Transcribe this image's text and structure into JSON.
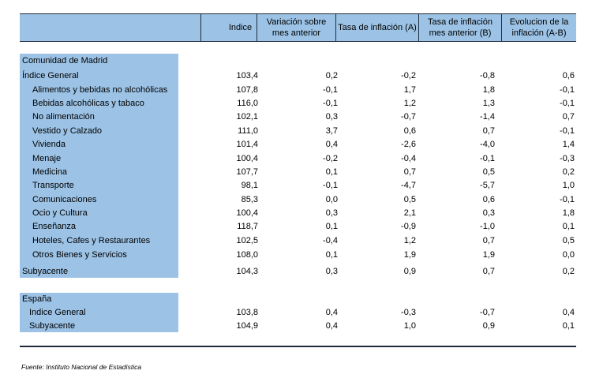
{
  "header": {
    "col0": "",
    "col1": "Indice",
    "col2": "Variación sobre mes anterior",
    "col3": "Tasa de inflación (A)",
    "col4": "Tasa de inflación mes anterior (B)",
    "col5": "Evolucion de la inflación (A-B)"
  },
  "madrid": {
    "title": "Comunidad de Madrid",
    "rows": [
      {
        "label": "Índice General",
        "v": [
          "103,4",
          "0,2",
          "-0,2",
          "-0,8",
          "0,6"
        ]
      },
      {
        "label": "Alimentos y bebidas no alcohólicas",
        "v": [
          "107,8",
          "-0,1",
          "1,7",
          "1,8",
          "-0,1"
        ]
      },
      {
        "label": "Bebidas alcohólicas y tabaco",
        "v": [
          "116,0",
          "-0,1",
          "1,2",
          "1,3",
          "-0,1"
        ]
      },
      {
        "label": "No alimentación",
        "v": [
          "102,1",
          "0,3",
          "-0,7",
          "-1,4",
          "0,7"
        ]
      },
      {
        "label": "Vestido y Calzado",
        "v": [
          "111,0",
          "3,7",
          "0,6",
          "0,7",
          "-0,1"
        ]
      },
      {
        "label": "Vivienda",
        "v": [
          "101,4",
          "0,4",
          "-2,6",
          "-4,0",
          "1,4"
        ]
      },
      {
        "label": "Menaje",
        "v": [
          "100,4",
          "-0,2",
          "-0,4",
          "-0,1",
          "-0,3"
        ]
      },
      {
        "label": "Medicina",
        "v": [
          "107,7",
          "0,1",
          "0,7",
          "0,5",
          "0,2"
        ]
      },
      {
        "label": "Transporte",
        "v": [
          "98,1",
          "-0,1",
          "-4,7",
          "-5,7",
          "1,0"
        ]
      },
      {
        "label": "Comunicaciones",
        "v": [
          "85,3",
          "0,0",
          "0,5",
          "0,6",
          "-0,1"
        ]
      },
      {
        "label": "Ocio y Cultura",
        "v": [
          "100,4",
          "0,3",
          "2,1",
          "0,3",
          "1,8"
        ]
      },
      {
        "label": "Enseñanza",
        "v": [
          "118,7",
          "0,1",
          "-0,9",
          "-1,0",
          "0,1"
        ]
      },
      {
        "label": "Hoteles, Cafes y Restaurantes",
        "v": [
          "102,5",
          "-0,4",
          "1,2",
          "0,7",
          "0,5"
        ]
      },
      {
        "label": "Otros Bienes y Servicios",
        "v": [
          "108,0",
          "0,1",
          "1,9",
          "1,9",
          "0,0"
        ]
      },
      {
        "label": "Subyacente",
        "v": [
          "104,3",
          "0,3",
          "0,9",
          "0,7",
          "0,2"
        ]
      }
    ]
  },
  "espana": {
    "title": "España",
    "rows": [
      {
        "label": "Indice General",
        "v": [
          "103,8",
          "0,4",
          "-0,3",
          "-0,7",
          "0,4"
        ]
      },
      {
        "label": "Subyacente",
        "v": [
          "104,9",
          "0,4",
          "1,0",
          "0,9",
          "0,1"
        ]
      }
    ]
  },
  "footer": {
    "source": "Fuente: Instituto Nacional de Estadística"
  }
}
